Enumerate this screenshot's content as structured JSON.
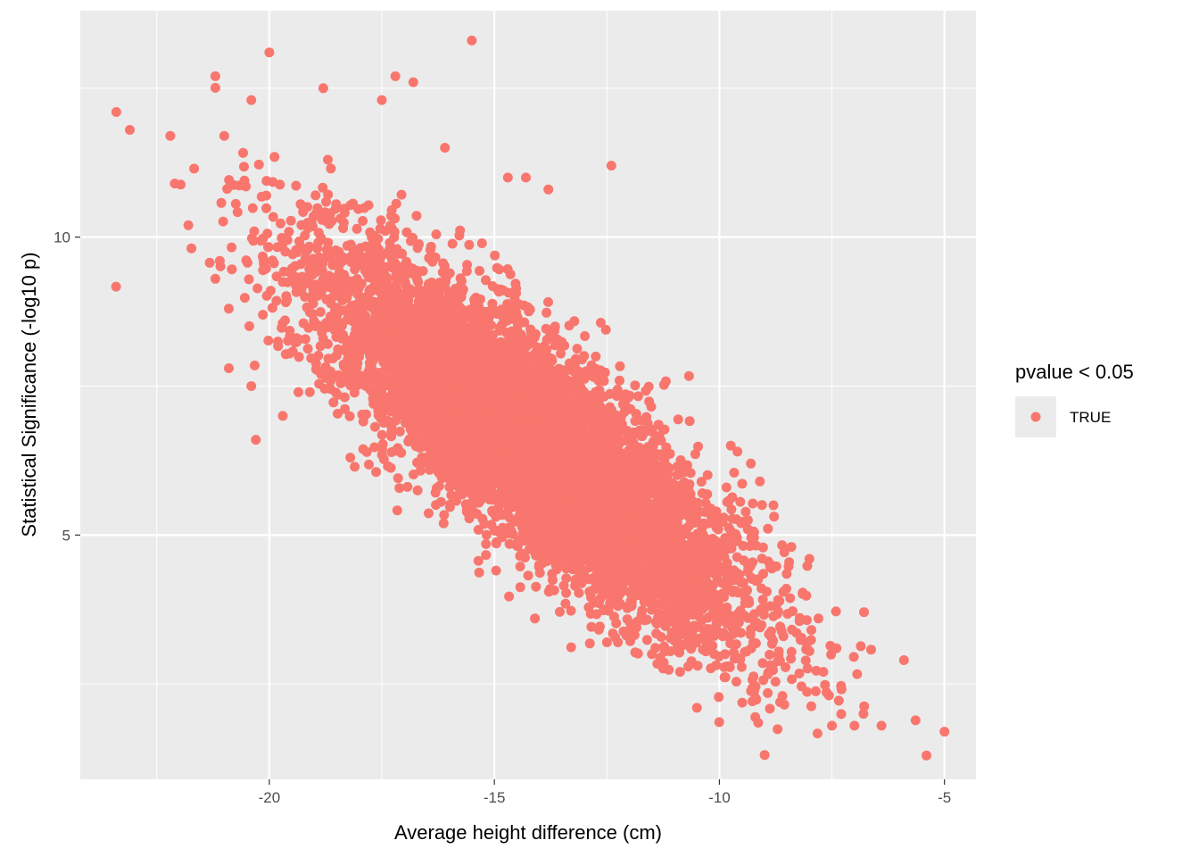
{
  "chart_data": {
    "type": "scatter",
    "title": "",
    "xlabel": "Average height difference (cm)",
    "ylabel": "Statistical Significance (-log10 p)",
    "xlim": [
      -24.2,
      -4.3
    ],
    "ylim": [
      0.9,
      13.8
    ],
    "x_ticks": [
      -20,
      -15,
      -10,
      -5
    ],
    "x_tick_labels": [
      "-20",
      "-15",
      "-10",
      "-5"
    ],
    "y_ticks": [
      5,
      10
    ],
    "y_tick_labels": [
      "5",
      "10"
    ],
    "grid": true,
    "legend": {
      "title": "pvalue < 0.05",
      "placement": "right",
      "entries": [
        {
          "label": "TRUE",
          "color": "#F8766D"
        }
      ]
    },
    "series": [
      {
        "name": "TRUE",
        "color": "#F8766D",
        "points": [
          [
            -23.4,
            12.1
          ],
          [
            -23.1,
            11.8
          ],
          [
            -22.2,
            11.7
          ],
          [
            -22.1,
            10.9
          ],
          [
            -21.8,
            10.2
          ],
          [
            -21.2,
            12.7
          ],
          [
            -21.2,
            9.3
          ],
          [
            -21.1,
            9.6
          ],
          [
            -21.0,
            11.7
          ],
          [
            -20.9,
            7.8
          ],
          [
            -20.9,
            8.8
          ],
          [
            -20.4,
            12.3
          ],
          [
            -20.4,
            7.5
          ],
          [
            -20.3,
            6.6
          ],
          [
            -20.0,
            13.1
          ],
          [
            -19.7,
            7.0
          ],
          [
            -19.1,
            7.4
          ],
          [
            -18.8,
            12.5
          ],
          [
            -18.7,
            11.3
          ],
          [
            -18.2,
            6.3
          ],
          [
            -17.5,
            12.3
          ],
          [
            -17.2,
            12.7
          ],
          [
            -16.8,
            12.6
          ],
          [
            -16.1,
            11.5
          ],
          [
            -15.5,
            13.3
          ],
          [
            -14.7,
            11.0
          ],
          [
            -14.3,
            11.0
          ],
          [
            -14.1,
            3.6
          ],
          [
            -13.8,
            10.8
          ],
          [
            -12.5,
            3.2
          ],
          [
            -12.4,
            11.2
          ],
          [
            -12.3,
            4.2
          ],
          [
            -11.5,
            3.0
          ],
          [
            -10.5,
            2.1
          ],
          [
            -9.6,
            6.4
          ],
          [
            -9.3,
            6.2
          ],
          [
            -9.1,
            5.9
          ],
          [
            -8.8,
            5.5
          ],
          [
            -8.6,
            2.3
          ],
          [
            -8.4,
            4.8
          ],
          [
            -8.0,
            4.6
          ],
          [
            -7.8,
            3.6
          ],
          [
            -7.5,
            1.8
          ],
          [
            -7.4,
            3.1
          ],
          [
            -7.0,
            1.8
          ],
          [
            -6.8,
            2.0
          ],
          [
            -6.4,
            1.8
          ],
          [
            -5.9,
            2.9
          ],
          [
            -5.4,
            1.3
          ],
          [
            -5.0,
            1.7
          ]
        ],
        "distribution": {
          "model": "bivariate-normal",
          "n": 7500,
          "x_mean": -14.2,
          "x_sd": 2.35,
          "y_mean": 6.55,
          "y_sd": 1.55,
          "correlation": -0.83
        }
      }
    ]
  }
}
